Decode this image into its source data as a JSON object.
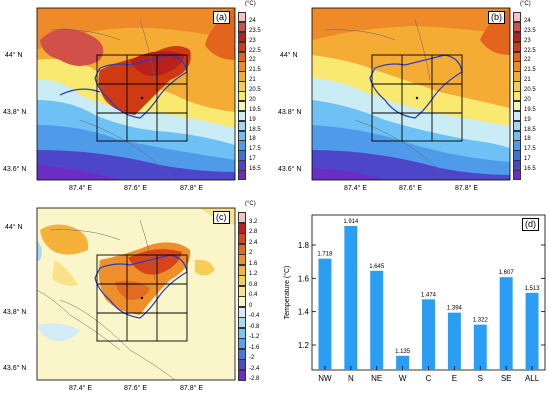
{
  "panels": [
    {
      "tag": "(a)",
      "unit": "(°C)",
      "lat_ticks": [
        "44° N",
        "43.8° N",
        "43.6° N"
      ],
      "lon_ticks": [
        "87.4° E",
        "87.6° E",
        "87.8° E"
      ],
      "colorbar": [
        "24",
        "23.5",
        "23",
        "22.5",
        "22",
        "21.5",
        "21",
        "20.5",
        "20",
        "19.5",
        "19",
        "18.5",
        "18",
        "17.5",
        "17",
        "16.5"
      ]
    },
    {
      "tag": "(b)",
      "unit": "(°C)",
      "lat_ticks": [
        "44° N",
        "43.8° N",
        "43.6° N"
      ],
      "lon_ticks": [
        "87.4° E",
        "87.6° E",
        "87.8° E"
      ],
      "colorbar": [
        "24",
        "23.5",
        "23",
        "22.5",
        "22",
        "21.5",
        "21",
        "20.5",
        "20",
        "19.5",
        "19",
        "18.5",
        "18",
        "17.5",
        "17",
        "16.5"
      ]
    },
    {
      "tag": "(c)",
      "unit": "(°C)",
      "lat_ticks": [
        "44° N",
        "43.8° N",
        "43.6° N"
      ],
      "lon_ticks": [
        "87.4° E",
        "87.6° E",
        "87.8° E"
      ],
      "colorbar": [
        "3.2",
        "2.8",
        "2.4",
        "2",
        "1.6",
        "1.2",
        "0.8",
        "0.4",
        "0",
        "-0.4",
        "-0.8",
        "-1.2",
        "-1.6",
        "-2",
        "-2.4",
        "-2.8"
      ]
    }
  ],
  "colors": {
    "warm_scale": [
      "#f3c2c2",
      "#d1504a",
      "#b7201c",
      "#cf3a12",
      "#e2641d",
      "#ee8a28",
      "#f4ac35",
      "#f8cd4d",
      "#fae970",
      "#f3f7b6",
      "#c9ecf5",
      "#9fd6f2",
      "#6ec1f5",
      "#4f9bea",
      "#3f72d9",
      "#4d46c9",
      "#6a2ec4"
    ],
    "diff_scale": [
      "#f2c4c4",
      "#c0201a",
      "#d5441a",
      "#e46a1f",
      "#ef8f2a",
      "#f6b13a",
      "#f8cd55",
      "#f9e389",
      "#fbf6c9",
      "#d3ecf7",
      "#a9d9f4",
      "#7cc4f3",
      "#5aa0ea",
      "#4678dd",
      "#4e4bcb",
      "#6a2ec4"
    ],
    "bar": "#2a9df4"
  },
  "chart_data": {
    "type": "bar",
    "tag": "(d)",
    "categories": [
      "NW",
      "N",
      "NE",
      "W",
      "C",
      "E",
      "S",
      "SE",
      "ALL"
    ],
    "values": [
      1.718,
      1.914,
      1.645,
      1.135,
      1.474,
      1.394,
      1.322,
      1.607,
      1.513
    ],
    "value_labels": [
      "1.718",
      "1.914",
      "1.645",
      "1.135",
      "1.474",
      "1.394",
      "1.322",
      "1.607",
      "1.513"
    ],
    "ylabel": "Temperature (°C)",
    "ylim": [
      1.05,
      1.98
    ],
    "yticks": [
      "1.2",
      "1.4",
      "1.6",
      "1.8"
    ],
    "ytick_values": [
      1.2,
      1.4,
      1.6,
      1.8
    ]
  }
}
